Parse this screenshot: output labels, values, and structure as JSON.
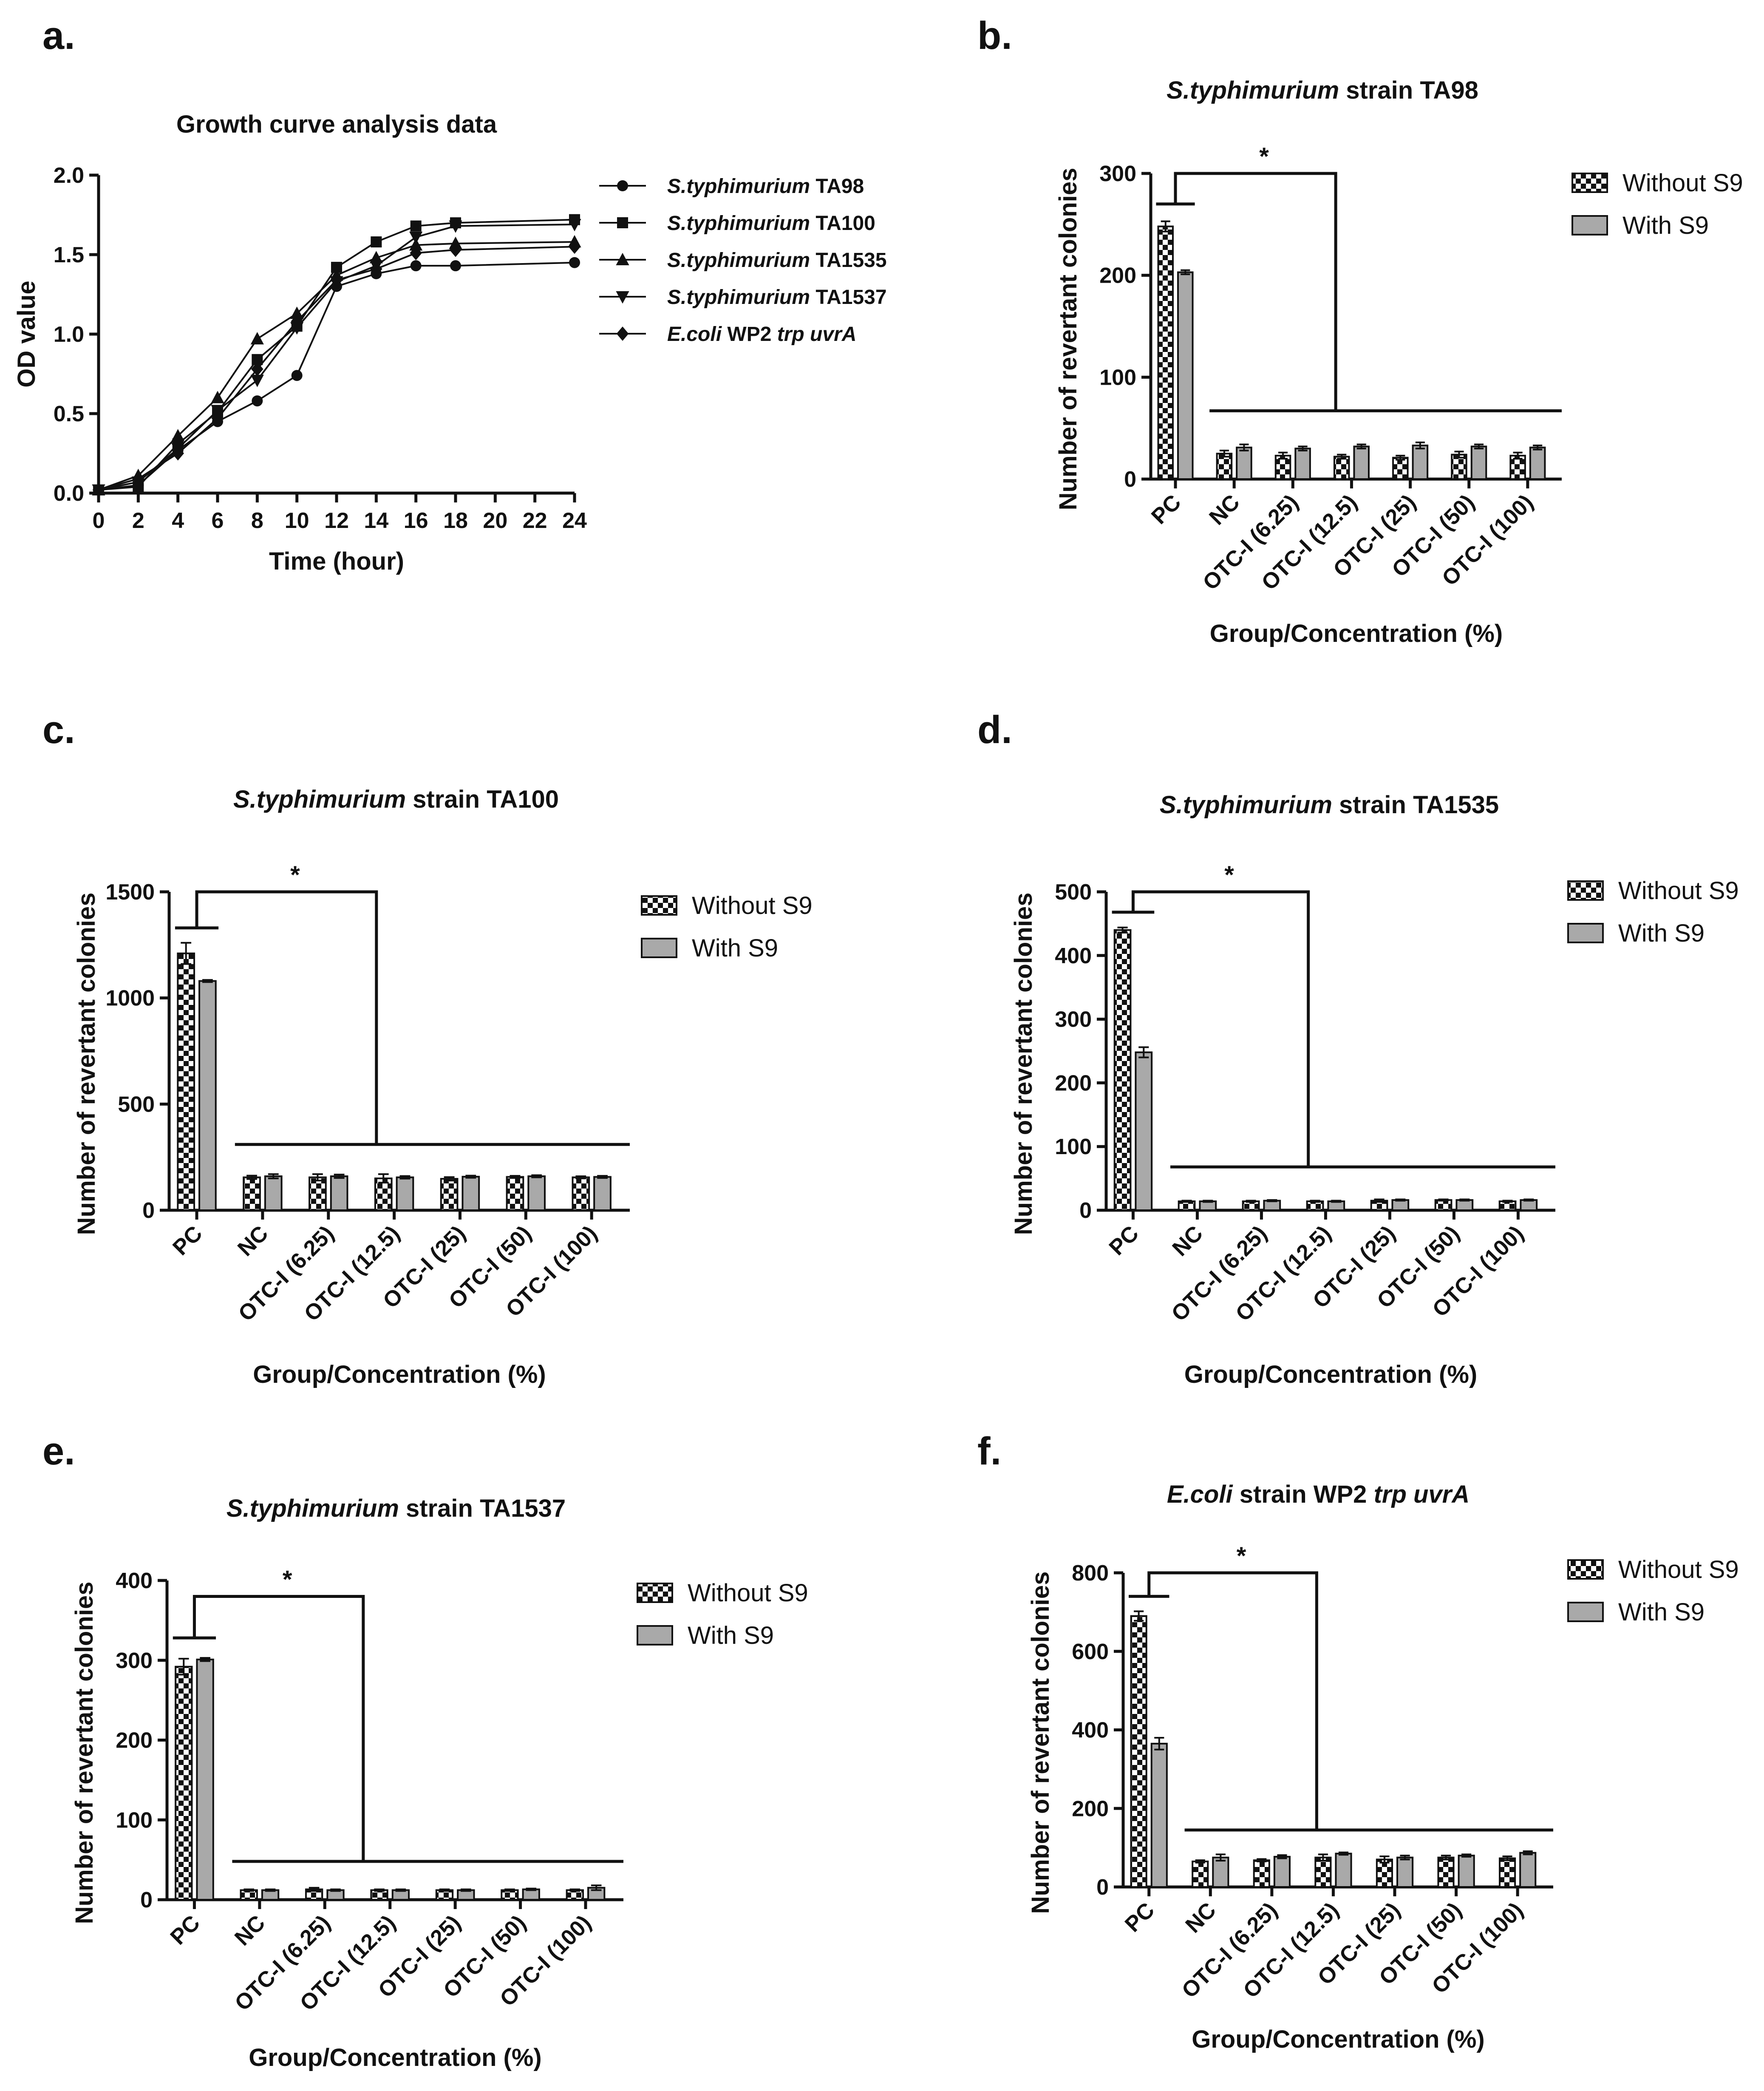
{
  "figure": {
    "colors": {
      "line": "#111111",
      "with_s9": "#a9a9a9",
      "checker_dark": "#111111",
      "checker_light": "#ffffff"
    }
  },
  "chart_data": [
    {
      "id": "a",
      "panel_label": "a.",
      "type": "line",
      "title": "Growth curve analysis data",
      "xlabel": "Time (hour)",
      "ylabel": "OD value",
      "xlim": [
        0,
        24
      ],
      "ylim": [
        0.0,
        2.0
      ],
      "x_ticks": [
        0,
        2,
        4,
        6,
        8,
        10,
        12,
        14,
        16,
        18,
        20,
        22,
        24
      ],
      "y_ticks": [
        "0.0",
        "0.5",
        "1.0",
        "1.5",
        "2.0"
      ],
      "x": [
        0,
        2,
        4,
        6,
        8,
        10,
        12,
        14,
        16,
        18,
        24
      ],
      "series": [
        {
          "name_italic": "S.typhimurium",
          "name_rest": " TA98",
          "marker": "circle",
          "values": [
            0.02,
            0.05,
            0.27,
            0.45,
            0.58,
            0.74,
            1.3,
            1.38,
            1.43,
            1.43,
            1.45
          ]
        },
        {
          "name_italic": "S.typhimurium",
          "name_rest": " TA100",
          "marker": "square",
          "values": [
            0.02,
            0.04,
            0.31,
            0.51,
            0.84,
            1.05,
            1.42,
            1.58,
            1.68,
            1.7,
            1.72
          ]
        },
        {
          "name_italic": "S.typhimurium",
          "name_rest": " TA1535",
          "marker": "triangle-up",
          "values": [
            0.02,
            0.11,
            0.36,
            0.6,
            0.97,
            1.13,
            1.37,
            1.48,
            1.56,
            1.57,
            1.58
          ]
        },
        {
          "name_italic": "S.typhimurium",
          "name_rest": " TA1537",
          "marker": "triangle-down",
          "values": [
            0.02,
            0.07,
            0.28,
            0.52,
            0.71,
            1.04,
            1.33,
            1.43,
            1.61,
            1.68,
            1.69
          ]
        },
        {
          "name_italic": "E.coli",
          "name_rest": " WP2 ",
          "name_italic2": "trp uvrA",
          "marker": "diamond",
          "values": [
            0.02,
            0.09,
            0.25,
            0.47,
            0.78,
            1.08,
            1.34,
            1.41,
            1.51,
            1.53,
            1.55
          ]
        }
      ]
    },
    {
      "id": "b",
      "panel_label": "b.",
      "type": "bar",
      "title_italic": "S.typhimurium",
      "title_rest": " strain TA98",
      "xlabel": "Group/Concentration (%)",
      "ylabel": "Number of revertant colonies",
      "ylim": [
        0,
        300
      ],
      "y_ticks": [
        "0",
        "100",
        "200",
        "300"
      ],
      "categories": [
        "PC",
        "NC",
        "OTC-I (6.25)",
        "OTC-I (12.5)",
        "OTC-I (25)",
        "OTC-I (50)",
        "OTC-I (100)"
      ],
      "series": [
        {
          "name": "Without S9",
          "values": [
            248,
            25,
            23,
            22,
            21,
            24,
            23
          ],
          "errors": [
            5,
            3,
            3,
            2,
            2,
            3,
            3
          ]
        },
        {
          "name": "With S9",
          "values": [
            203,
            31,
            30,
            32,
            33,
            32,
            31
          ],
          "errors": [
            2,
            3,
            2,
            2,
            3,
            2,
            2
          ]
        }
      ],
      "significance": "*",
      "bracket": {
        "pc_level": 270,
        "top": 300,
        "nc_level": 67
      }
    },
    {
      "id": "c",
      "panel_label": "c.",
      "type": "bar",
      "title_italic": "S.typhimurium",
      "title_rest": " strain TA100",
      "xlabel": "Group/Concentration (%)",
      "ylabel": "Number of revertant colonies",
      "ylim": [
        0,
        1500
      ],
      "y_ticks": [
        "0",
        "500",
        "1000",
        "1500"
      ],
      "categories": [
        "PC",
        "NC",
        "OTC-I (6.25)",
        "OTC-I (12.5)",
        "OTC-I (25)",
        "OTC-I (50)",
        "OTC-I (100)"
      ],
      "series": [
        {
          "name": "Without S9",
          "values": [
            1210,
            155,
            155,
            150,
            148,
            157,
            155
          ],
          "errors": [
            50,
            8,
            15,
            20,
            8,
            5,
            5
          ]
        },
        {
          "name": "With S9",
          "values": [
            1080,
            160,
            160,
            155,
            158,
            160,
            157
          ],
          "errors": [
            5,
            10,
            8,
            6,
            5,
            5,
            5
          ]
        }
      ],
      "significance": "*",
      "bracket": {
        "pc_level": 1330,
        "top": 1500,
        "nc_level": 310
      }
    },
    {
      "id": "d",
      "panel_label": "d.",
      "type": "bar",
      "title_italic": "S.typhimurium",
      "title_rest": " strain TA1535",
      "xlabel": "Group/Concentration (%)",
      "ylabel": "Number of revertant colonies",
      "ylim": [
        0,
        500
      ],
      "y_ticks": [
        "0",
        "100",
        "200",
        "300",
        "400",
        "500"
      ],
      "categories": [
        "PC",
        "NC",
        "OTC-I (6.25)",
        "OTC-I (12.5)",
        "OTC-I (25)",
        "OTC-I (50)",
        "OTC-I (100)"
      ],
      "series": [
        {
          "name": "Without S9",
          "values": [
            440,
            14,
            14,
            14,
            15,
            16,
            14
          ],
          "errors": [
            4,
            1,
            1,
            1,
            2,
            1,
            1
          ]
        },
        {
          "name": "With S9",
          "values": [
            248,
            14,
            15,
            14,
            16,
            16,
            16
          ],
          "errors": [
            8,
            1,
            1,
            1,
            1,
            1,
            1
          ]
        }
      ],
      "significance": "*",
      "bracket": {
        "pc_level": 468,
        "top": 500,
        "nc_level": 68
      }
    },
    {
      "id": "e",
      "panel_label": "e.",
      "type": "bar",
      "title_italic": "S.typhimurium",
      "title_rest": " strain TA1537",
      "xlabel": "Group/Concentration (%)",
      "ylabel": "Number of revertant colonies",
      "ylim": [
        0,
        400
      ],
      "y_ticks": [
        "0",
        "100",
        "200",
        "300",
        "400"
      ],
      "categories": [
        "PC",
        "NC",
        "OTC-I (6.25)",
        "OTC-I (12.5)",
        "OTC-I (25)",
        "OTC-I (50)",
        "OTC-I (100)"
      ],
      "series": [
        {
          "name": "Without S9",
          "values": [
            292,
            12,
            13,
            12,
            12,
            12,
            12
          ],
          "errors": [
            10,
            1,
            2,
            1,
            1,
            1,
            1
          ]
        },
        {
          "name": "With S9",
          "values": [
            301,
            12,
            12,
            12,
            12,
            13,
            15
          ],
          "errors": [
            2,
            1,
            1,
            1,
            1,
            1,
            3
          ]
        }
      ],
      "significance": "*",
      "bracket": {
        "pc_level": 328,
        "top": 380,
        "nc_level": 48
      }
    },
    {
      "id": "f",
      "panel_label": "f.",
      "type": "bar",
      "title_italic": "E.coli",
      "title_rest": " strain WP2 ",
      "title_italic2": "trp uvrA",
      "xlabel": "Group/Concentration (%)",
      "ylabel": "Number of revertant colonies",
      "ylim": [
        0,
        800
      ],
      "y_ticks": [
        "0",
        "200",
        "400",
        "600",
        "800"
      ],
      "categories": [
        "PC",
        "NC",
        "OTC-I (6.25)",
        "OTC-I (12.5)",
        "OTC-I (25)",
        "OTC-I (50)",
        "OTC-I (100)"
      ],
      "series": [
        {
          "name": "Without S9",
          "values": [
            690,
            65,
            68,
            75,
            70,
            75,
            73
          ],
          "errors": [
            12,
            3,
            3,
            8,
            8,
            5,
            5
          ]
        },
        {
          "name": "With S9",
          "values": [
            365,
            75,
            77,
            85,
            75,
            80,
            87
          ],
          "errors": [
            15,
            8,
            4,
            3,
            5,
            3,
            4
          ]
        }
      ],
      "significance": "*",
      "bracket": {
        "pc_level": 740,
        "top": 800,
        "nc_level": 145
      }
    }
  ]
}
